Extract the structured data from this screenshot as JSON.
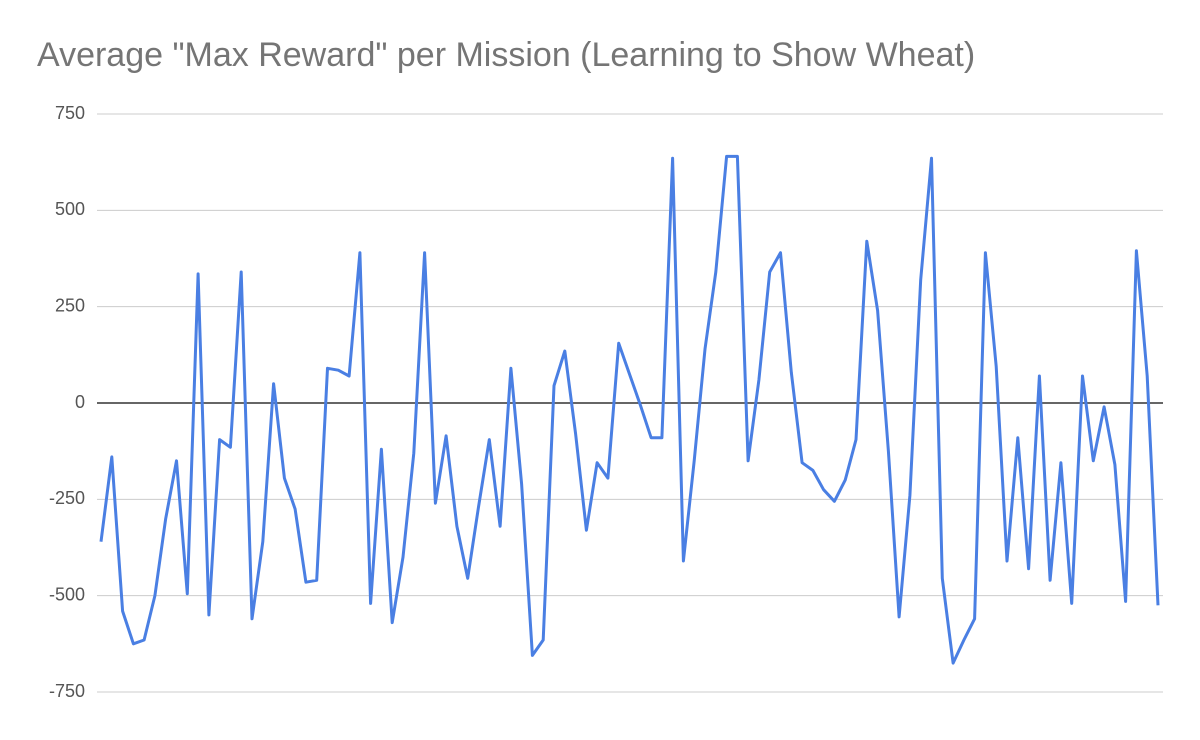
{
  "chart_data": {
    "type": "line",
    "title": "Average \"Max Reward\" per Mission (Learning to Show Wheat)",
    "values": [
      -360,
      -140,
      -540,
      -625,
      -615,
      -500,
      -300,
      -150,
      -495,
      335,
      -550,
      -95,
      -115,
      340,
      -560,
      -360,
      50,
      -195,
      -275,
      -465,
      -460,
      90,
      85,
      70,
      390,
      -520,
      -120,
      -570,
      -400,
      -130,
      390,
      -260,
      -85,
      -320,
      -455,
      -270,
      -95,
      -320,
      90,
      -210,
      -655,
      -615,
      45,
      135,
      -80,
      -330,
      -155,
      -195,
      155,
      75,
      -5,
      -90,
      -90,
      635,
      -410,
      -150,
      140,
      340,
      640,
      640,
      -150,
      60,
      340,
      390,
      80,
      -155,
      -175,
      -225,
      -255,
      -200,
      -95,
      420,
      240,
      -125,
      -555,
      -240,
      320,
      635,
      -455,
      -675,
      -615,
      -560,
      390,
      95,
      -410,
      -90,
      -430,
      70,
      -460,
      -155,
      -520,
      70,
      -150,
      -10,
      -160,
      -515,
      395,
      70,
      -525
    ],
    "color": "#4a7fe3",
    "ylim": [
      -750,
      750
    ],
    "yticks": [
      750,
      500,
      250,
      0,
      -250,
      -500,
      -750
    ],
    "grid": true
  }
}
